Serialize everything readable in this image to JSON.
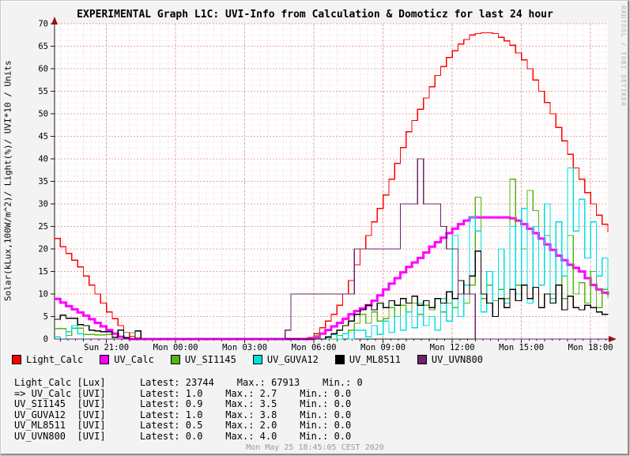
{
  "title": "EXPERIMENTAL Graph L1C: UVI-Info from Calculation & Domoticz for last 24 hour",
  "ylabel": "Solar(kLux,100W/m^2)/ Light(%)/ UVI*10 / Units",
  "watermark": "RRDTOOL / TOBI OETIKER",
  "footer_timestamp": "Mon May 25 18:45:05 CEST 2020",
  "colors": {
    "background": "#f3f3f3",
    "canvas": "#ffffff",
    "grid_minor": "#f6dede",
    "grid_major": "#e8a4a4",
    "axis": "#1a1a1a",
    "arrow": "#9b1010"
  },
  "legend": {
    "items": [
      {
        "label": "Light_Calc",
        "color": "#ff0000"
      },
      {
        "label": "UV_Calc",
        "color": "#ff00ff"
      },
      {
        "label": "UV_SI1145",
        "color": "#54b410"
      },
      {
        "label": "UV_GUVA12",
        "color": "#00e0e0"
      },
      {
        "label": "UV_ML8511",
        "color": "#000000"
      },
      {
        "label": "UV_UVN800",
        "color": "#6b256b"
      }
    ]
  },
  "stats": {
    "rows": [
      {
        "text": "Light_Calc [Lux]      Latest: 23744    Max.: 67913    Min.: 0",
        "name": "Light_Calc",
        "unit": "Lux",
        "latest": "23744",
        "max": "67913",
        "min": "0"
      },
      {
        "text": "=> UV_Calc [UVI]      Latest: 1.0    Max.: 2.7    Min.: 0.0",
        "name": "UV_Calc",
        "unit": "UVI",
        "latest": "1.0",
        "max": "2.7",
        "min": "0.0"
      },
      {
        "text": "UV_SI1145  [UVI]      Latest: 0.9    Max.: 3.5    Min.: 0.0",
        "name": "UV_SI1145",
        "unit": "UVI",
        "latest": "0.9",
        "max": "3.5",
        "min": "0.0"
      },
      {
        "text": "UV_GUVA12  [UVI]      Latest: 1.0    Max.: 3.8    Min.: 0.0",
        "name": "UV_GUVA12",
        "unit": "UVI",
        "latest": "1.0",
        "max": "3.8",
        "min": "0.0"
      },
      {
        "text": "UV_ML8511  [UVI]      Latest: 0.5    Max.: 2.0    Min.: 0.0",
        "name": "UV_ML8511",
        "unit": "UVI",
        "latest": "0.5",
        "max": "2.0",
        "min": "0.0"
      },
      {
        "text": "UV_UVN800  [UVI]      Latest: 0.0    Max.: 4.0    Min.: 0.0",
        "name": "UV_UVN800",
        "unit": "UVI",
        "latest": "0.0",
        "max": "4.0",
        "min": "0.0"
      }
    ]
  },
  "chart_data": {
    "type": "line",
    "title": "EXPERIMENTAL Graph L1C: UVI-Info from Calculation & Domoticz for last 24 hour",
    "ylabel": "Solar(kLux,100W/m^2)/ Light(%)/ UVI*10 / Units",
    "ylim": [
      0,
      70
    ],
    "y_tick_step": 5,
    "grid": "on",
    "legend_position": "bottom",
    "x_start": "Sun 18:45",
    "x_end": "Mon 18:45",
    "span_hours": 24,
    "step_hours": 0.25,
    "x_ticks": [
      {
        "label": "Sun 21:00",
        "hour": 2.25
      },
      {
        "label": "Mon 00:00",
        "hour": 5.25
      },
      {
        "label": "Mon 03:00",
        "hour": 8.25
      },
      {
        "label": "Mon 06:00",
        "hour": 11.25
      },
      {
        "label": "Mon 09:00",
        "hour": 14.25
      },
      {
        "label": "Mon 12:00",
        "hour": 17.25
      },
      {
        "label": "Mon 15:00",
        "hour": 20.25
      },
      {
        "label": "Mon 18:00",
        "hour": 23.25
      }
    ],
    "series": [
      {
        "name": "Light_Calc",
        "color": "#ff0000",
        "width": 1.3,
        "values": [
          22.3,
          20.5,
          19,
          17.5,
          16,
          14,
          12,
          10,
          8,
          6,
          4.5,
          3,
          1.5,
          0.6,
          0.2,
          0,
          0,
          0,
          0,
          0,
          0,
          0,
          0,
          0,
          0,
          0,
          0,
          0,
          0,
          0,
          0,
          0,
          0,
          0,
          0,
          0,
          0,
          0,
          0,
          0,
          0,
          0,
          0,
          0,
          0.3,
          1.2,
          2.5,
          4,
          5.5,
          7.5,
          10,
          13,
          16.5,
          20,
          23,
          26,
          29,
          32,
          35.5,
          39,
          42.5,
          46,
          48.5,
          51,
          53.5,
          56,
          58.5,
          60.5,
          62.5,
          64,
          65.5,
          66.5,
          67.5,
          67.8,
          68,
          68,
          67.8,
          67,
          66.2,
          65.2,
          63.5,
          62,
          60,
          57.5,
          55,
          52.5,
          50,
          47,
          44,
          41,
          38,
          35.5,
          32.5,
          30,
          27.5,
          25.5,
          23.7
        ]
      },
      {
        "name": "UV_Calc",
        "color": "#ff00ff",
        "width": 3,
        "values": [
          8.9,
          8.1,
          7.3,
          6.6,
          5.9,
          5.2,
          4.4,
          3.6,
          2.8,
          2.0,
          1.2,
          0.5,
          0.2,
          0,
          0,
          0,
          0,
          0,
          0,
          0,
          0,
          0,
          0,
          0,
          0,
          0,
          0,
          0,
          0,
          0,
          0,
          0,
          0,
          0,
          0,
          0,
          0,
          0,
          0,
          0,
          0,
          0,
          0,
          0,
          0,
          0.4,
          1.2,
          2,
          2.8,
          3.6,
          4.5,
          5.5,
          6.2,
          6.8,
          7.5,
          8.5,
          9.7,
          11,
          12.3,
          13.5,
          14.8,
          16,
          17,
          18,
          19.2,
          20.5,
          21.5,
          22.5,
          23.5,
          24.5,
          25.5,
          26.3,
          27,
          27,
          27,
          27,
          27,
          27,
          27,
          26.8,
          26.3,
          25.5,
          24.5,
          23.5,
          22.3,
          21,
          19.8,
          18.5,
          17.5,
          16.5,
          15.8,
          15,
          13.5,
          12,
          11,
          10.3,
          9.8
        ]
      },
      {
        "name": "UV_SI1145",
        "color": "#54b410",
        "width": 1.3,
        "values": [
          2.3,
          2.3,
          0.8,
          2.4,
          2.4,
          1.0,
          1.0,
          0.9,
          0.9,
          1.0,
          0,
          0,
          1.5,
          1.4,
          0,
          0,
          0,
          0,
          0,
          0,
          0,
          0,
          0,
          0,
          0,
          0,
          0,
          0,
          0,
          0,
          0,
          0,
          0,
          0,
          0,
          0,
          0,
          0,
          0,
          0,
          0,
          0,
          0,
          0,
          0,
          0.8,
          0,
          0.6,
          0,
          0.8,
          1.2,
          2,
          3.5,
          5.5,
          3.5,
          6,
          4,
          4.5,
          7,
          5,
          7.5,
          6,
          8,
          5.5,
          7.5,
          6.5,
          9,
          6,
          8,
          7,
          10,
          8,
          12,
          31.5,
          9,
          12,
          8.5,
          11,
          9,
          35.5,
          12,
          20,
          33,
          28.5,
          12,
          23,
          10,
          26,
          9,
          23,
          10,
          12.5,
          8,
          15,
          7,
          11,
          9
        ]
      },
      {
        "name": "UV_GUVA12",
        "color": "#00e0e0",
        "width": 1.3,
        "values": [
          0.5,
          0,
          1.6,
          3.0,
          1.2,
          0,
          0,
          0,
          0,
          0,
          0,
          0,
          0,
          0,
          0,
          0,
          0,
          0,
          0,
          0,
          0,
          0,
          0,
          0,
          0,
          0,
          0,
          0,
          0,
          0,
          0,
          0,
          0,
          0,
          0,
          0,
          0,
          0,
          0,
          0,
          0,
          0,
          0,
          0,
          0,
          0,
          0,
          0,
          1,
          0,
          1.2,
          0,
          2,
          2,
          0.5,
          3,
          1,
          4,
          1.5,
          5,
          2,
          6,
          2.5,
          8,
          3,
          5,
          2,
          9,
          4,
          23,
          5,
          12,
          27,
          24,
          6,
          15,
          5,
          20,
          8,
          25,
          10,
          29,
          8,
          25,
          12,
          30,
          9,
          26,
          14,
          38,
          24,
          31,
          18,
          26,
          14,
          18,
          10.5
        ]
      },
      {
        "name": "UV_ML8511",
        "color": "#000000",
        "width": 1.3,
        "values": [
          4.4,
          5.3,
          4.6,
          4.6,
          3.2,
          3.0,
          2.0,
          1.8,
          1.6,
          1.6,
          0.4,
          2.0,
          0.3,
          0,
          1.8,
          0,
          0,
          0,
          0,
          0,
          0,
          0,
          0,
          0,
          0,
          0,
          0,
          0,
          0,
          0,
          0,
          0,
          0,
          0,
          0,
          0,
          0,
          0,
          0,
          0,
          0,
          0,
          0,
          0,
          0,
          0,
          0,
          0.4,
          1.2,
          2,
          3,
          4,
          5.5,
          6.5,
          7.5,
          6.5,
          8,
          7,
          8.5,
          7.5,
          9,
          8,
          9.5,
          7.5,
          8.5,
          7,
          9,
          8,
          10.5,
          9,
          13,
          10,
          14,
          19.5,
          10,
          8,
          5,
          9,
          7,
          11,
          8.5,
          12,
          9,
          11.5,
          7,
          10,
          8,
          12,
          6.5,
          9.5,
          7,
          6.5,
          7.5,
          7,
          6,
          5.5,
          5.4
        ]
      },
      {
        "name": "UV_UVN800",
        "color": "#6b256b",
        "width": 1.3,
        "values": [
          0,
          0,
          0,
          0,
          0,
          0,
          0,
          0,
          0,
          0,
          0,
          0,
          0,
          0,
          0,
          0,
          0,
          0,
          0,
          0,
          0,
          0,
          0,
          0,
          0,
          0,
          0,
          0,
          0,
          0,
          0,
          0,
          0,
          0,
          0,
          0,
          0,
          0,
          0,
          0,
          2,
          10,
          10,
          10,
          10,
          10,
          10,
          10,
          10,
          10,
          10,
          10,
          20,
          20,
          20,
          20,
          20,
          20,
          20,
          20,
          30,
          30,
          30,
          40,
          30,
          30,
          30,
          25,
          20,
          20,
          10,
          10,
          10,
          0,
          0,
          0,
          0,
          0,
          0,
          0,
          0,
          0,
          0,
          0,
          0,
          0,
          0,
          0,
          0,
          0,
          0,
          0,
          0,
          0,
          0,
          0,
          0
        ]
      }
    ]
  }
}
